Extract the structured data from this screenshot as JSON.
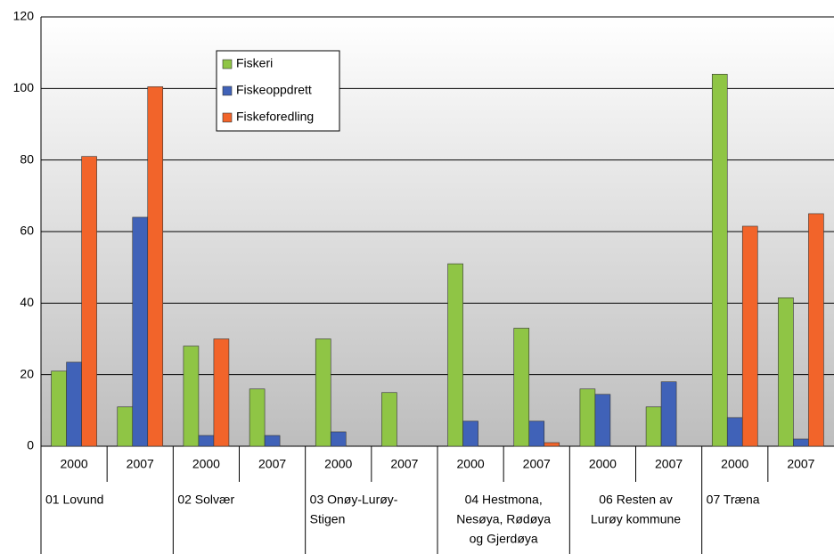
{
  "chart_data": {
    "type": "bar",
    "categories": [
      "2000",
      "2007",
      "2000",
      "2007",
      "2000",
      "2007",
      "2000",
      "2007",
      "2000",
      "2007",
      "2000",
      "2007"
    ],
    "groups": [
      {
        "lines": [
          "01 Lovund"
        ]
      },
      {
        "lines": [
          "02 Solvær"
        ]
      },
      {
        "lines": [
          "03 Onøy-Lurøy-",
          "Stigen"
        ]
      },
      {
        "lines": [
          "04 Hestmona,",
          "Nesøya, Rødøya",
          "og Gjerdøya"
        ]
      },
      {
        "lines": [
          "06 Resten av",
          "Lurøy kommune"
        ]
      },
      {
        "lines": [
          "07 Træna"
        ]
      }
    ],
    "series": [
      {
        "name": "Fiskeri",
        "color": "#8fc545",
        "values": [
          21,
          11,
          28,
          16,
          30,
          15,
          51,
          33,
          16,
          11,
          104,
          41.5
        ]
      },
      {
        "name": "Fiskeoppdrett",
        "color": "#4062b8",
        "values": [
          23.5,
          64,
          3,
          3,
          4,
          0,
          7,
          7,
          14.5,
          18,
          8,
          2
        ]
      },
      {
        "name": "Fiskeforedling",
        "color": "#f2642a",
        "values": [
          81,
          100.5,
          30,
          0,
          0,
          0,
          0,
          1,
          0,
          0,
          61.5,
          65
        ]
      }
    ],
    "ylim": [
      0,
      120
    ],
    "yticks": [
      0,
      20,
      40,
      60,
      80,
      100,
      120
    ],
    "grid": true,
    "legend": "top-left"
  }
}
